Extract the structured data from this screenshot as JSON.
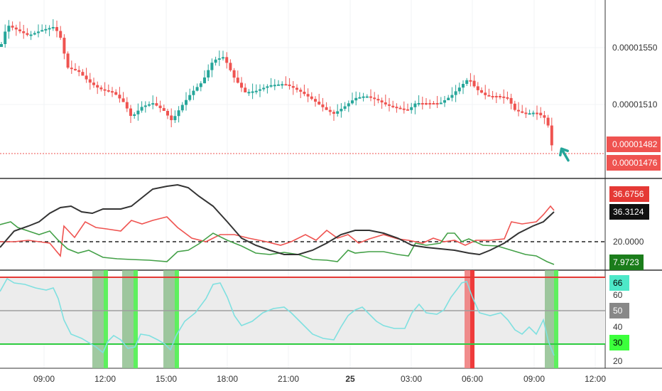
{
  "colors": {
    "up": "#26a69a",
    "down": "#ef5350",
    "price_line": "#ef5350",
    "adx": "#333333",
    "di_plus": "#ef5350",
    "di_minus": "#43a047",
    "rsi": "#7fe0e0",
    "rsi_upper": "#e53935",
    "rsi_lower": "#2ecc40",
    "rsi_mid": "#9e9e9e",
    "rsi_band": "#ececec",
    "arrow": "#26a69a"
  },
  "price_axis": {
    "ticks": [
      "0.00001550",
      "0.00001510"
    ],
    "tag_current": "0.00001482",
    "tag_last": "0.00001476"
  },
  "dmi_axis": {
    "tag_di_plus": "36.6756",
    "tag_adx": "36.3124",
    "level_label": "20.0000",
    "tag_di_minus": "7.9723"
  },
  "rsi_axis": {
    "tag_upper": "66",
    "tick_60": "60",
    "tag_mid": "50",
    "tick_40": "40",
    "tag_lower": "30",
    "tick_20": "20"
  },
  "time_axis": [
    "09:00",
    "12:00",
    "15:00",
    "18:00",
    "21:00",
    "25",
    "03:00",
    "06:00",
    "09:00",
    "12:00"
  ],
  "icons": {
    "signal": "up-arrow-icon"
  }
}
